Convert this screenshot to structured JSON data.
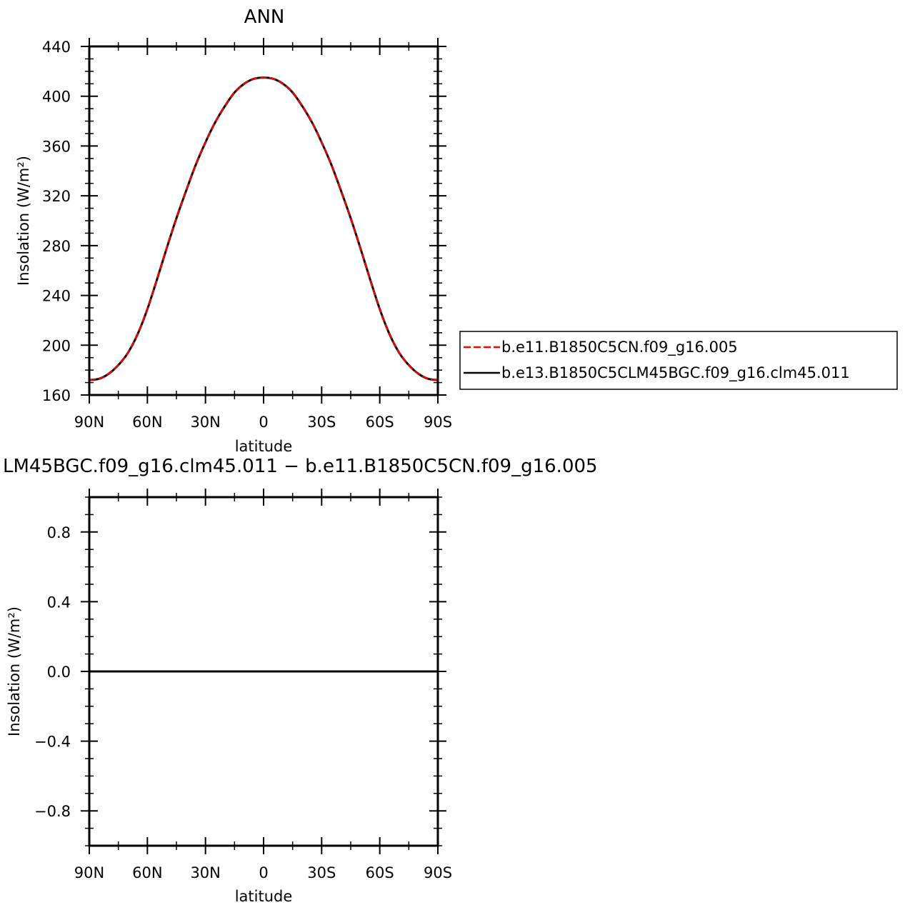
{
  "chart_data": [
    {
      "type": "line",
      "title": "ANN",
      "xlabel": "latitude",
      "ylabel": "Insolation (W/m²)",
      "xlim": [
        -90,
        90
      ],
      "ylim": [
        160,
        440
      ],
      "x_ticks": [
        -90,
        -60,
        -30,
        0,
        30,
        60,
        90
      ],
      "x_tick_labels": [
        "90N",
        "60N",
        "30N",
        "0",
        "30S",
        "60S",
        "90S"
      ],
      "y_ticks": [
        160,
        200,
        240,
        280,
        320,
        360,
        400,
        440
      ],
      "y_tick_labels": [
        "160",
        "200",
        "240",
        "280",
        "320",
        "360",
        "400",
        "440"
      ],
      "x": [
        -90,
        -85,
        -80,
        -75,
        -70,
        -65,
        -60,
        -55,
        -50,
        -45,
        -40,
        -35,
        -30,
        -25,
        -20,
        -15,
        -10,
        -5,
        0,
        5,
        10,
        15,
        20,
        25,
        30,
        35,
        40,
        45,
        50,
        55,
        60,
        65,
        70,
        75,
        80,
        85,
        90
      ],
      "series": [
        {
          "name": "b.e11.B1850C5CN.f09_g16.005",
          "color": "#ff0000",
          "dash": "dashed",
          "values": [
            172,
            173,
            177,
            184,
            194,
            209,
            229,
            253,
            278,
            302,
            324,
            345,
            363,
            379,
            392,
            403,
            410,
            414,
            415,
            414,
            410,
            403,
            392,
            379,
            363,
            345,
            324,
            302,
            278,
            253,
            229,
            209,
            194,
            184,
            177,
            173,
            172
          ]
        },
        {
          "name": "b.e13.B1850C5CLM45BGC.f09_g16.clm45.011",
          "color": "#000000",
          "dash": "solid",
          "values": [
            172,
            173,
            177,
            184,
            194,
            209,
            229,
            253,
            278,
            302,
            324,
            345,
            363,
            379,
            392,
            403,
            410,
            414,
            415,
            414,
            410,
            403,
            392,
            379,
            363,
            345,
            324,
            302,
            278,
            253,
            229,
            209,
            194,
            184,
            177,
            173,
            172
          ]
        }
      ],
      "legend": "right"
    },
    {
      "type": "line",
      "title": "LM45BGC.f09_g16.clm45.011 − b.e11.B1850C5CN.f09_g16.005",
      "xlabel": "latitude",
      "ylabel": "Insolation (W/m²)",
      "xlim": [
        -90,
        90
      ],
      "ylim": [
        -1,
        1
      ],
      "x_ticks": [
        -90,
        -60,
        -30,
        0,
        30,
        60,
        90
      ],
      "x_tick_labels": [
        "90N",
        "60N",
        "30N",
        "0",
        "30S",
        "60S",
        "90S"
      ],
      "y_ticks": [
        -0.8,
        -0.4,
        0.0,
        0.4,
        0.8
      ],
      "y_tick_labels": [
        "−0.8",
        "−0.4",
        "0.0",
        "0.4",
        "0.8"
      ],
      "x": [
        -90,
        90
      ],
      "series": [
        {
          "color": "#000000",
          "dash": "solid",
          "values": [
            0,
            0
          ]
        }
      ]
    }
  ]
}
